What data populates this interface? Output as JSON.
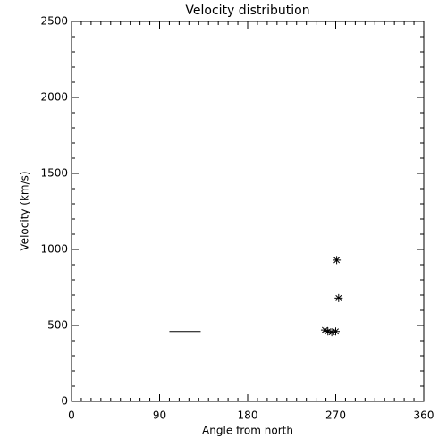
{
  "chart_data": {
    "type": "scatter",
    "title": "Velocity distribution",
    "xlabel": "Angle from north",
    "ylabel": "Velocity (km/s)",
    "xlim": [
      0,
      360
    ],
    "xticks": [
      0,
      90,
      180,
      270,
      360
    ],
    "ylim": [
      0,
      2500
    ],
    "yticks": [
      0,
      500,
      1000,
      1500,
      2000,
      2500
    ],
    "x_minor": 9,
    "y_minor": 5,
    "color": "#000000",
    "x": [
      271,
      273,
      259,
      262,
      266,
      270
    ],
    "values": [
      930,
      680,
      470,
      460,
      455,
      460
    ],
    "segment": {
      "x": [
        100,
        132
      ],
      "values": [
        460,
        460
      ]
    }
  }
}
